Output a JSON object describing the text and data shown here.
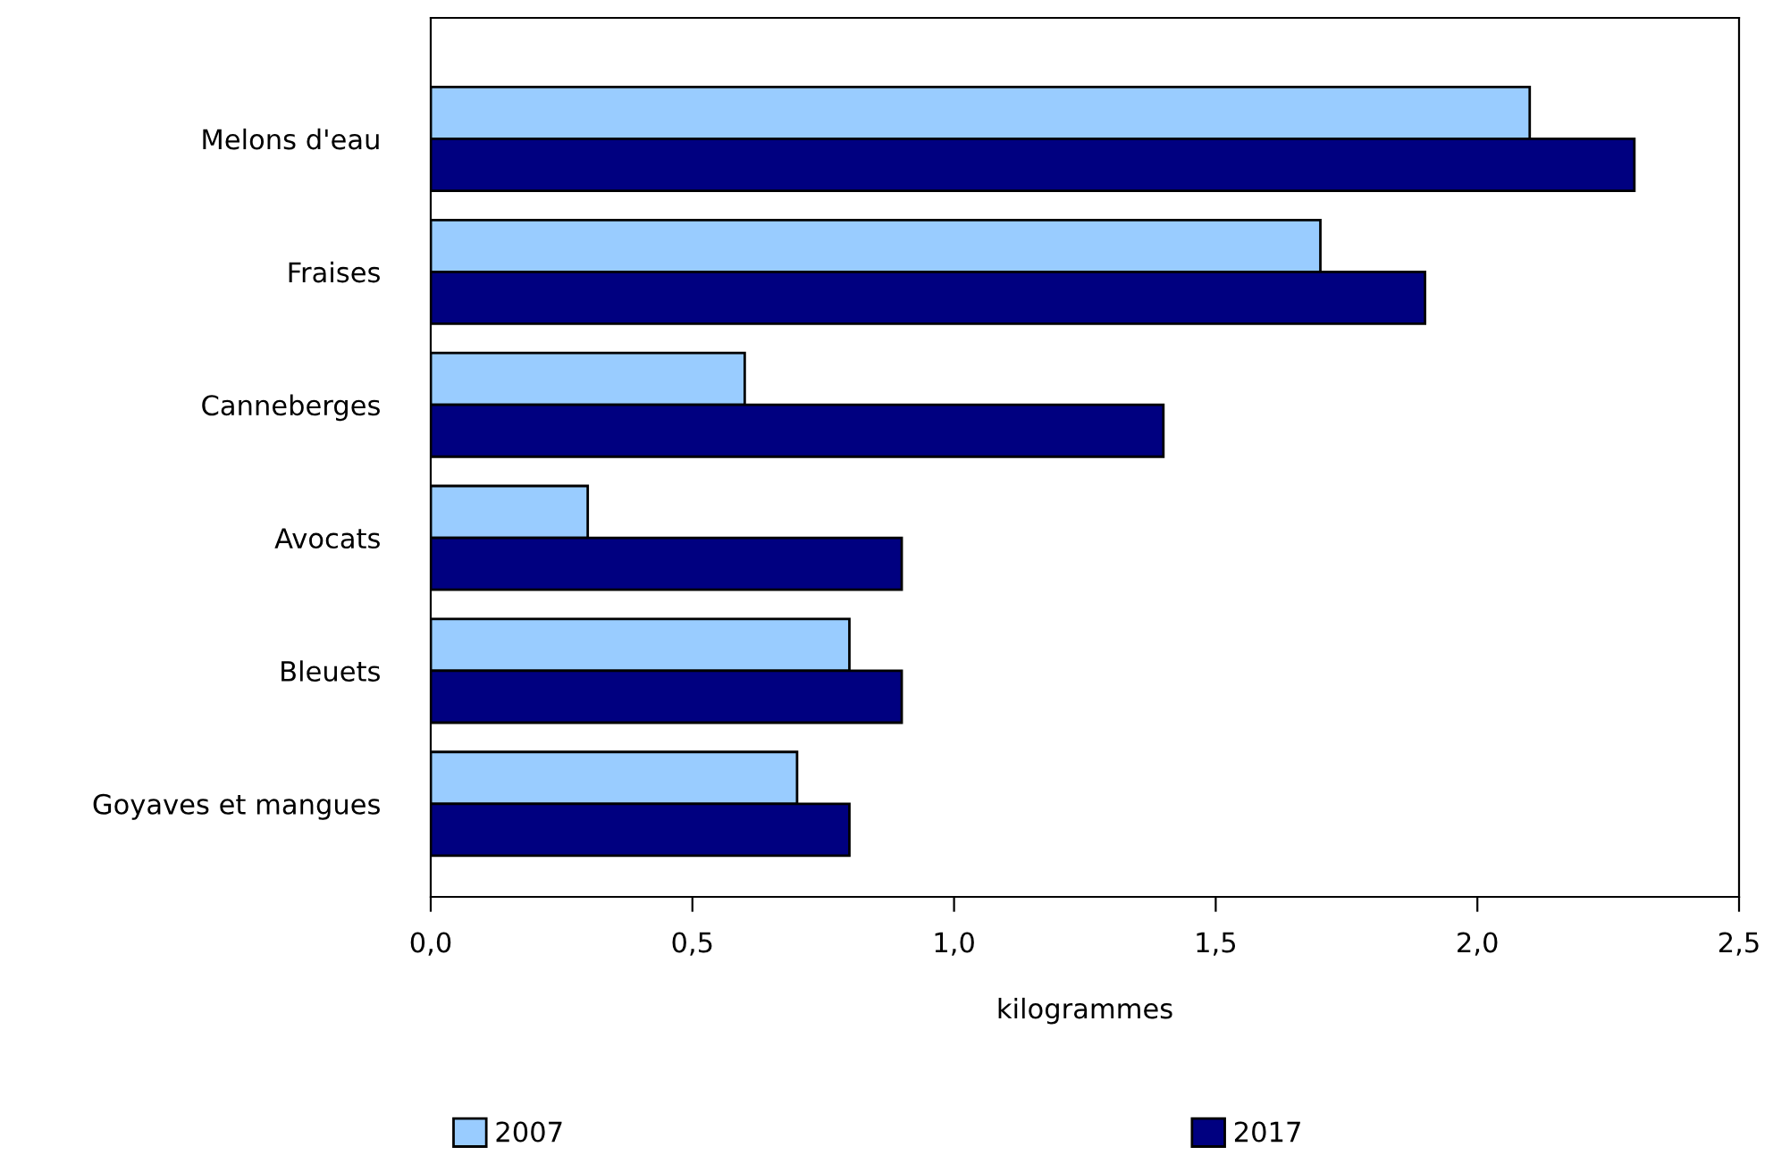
{
  "chart_data": {
    "type": "bar",
    "orientation": "horizontal",
    "xlabel": "kilogrammes",
    "categories": [
      "Melons d'eau",
      "Fraises",
      "Canneberges",
      "Avocats",
      "Bleuets",
      "Goyaves et mangues"
    ],
    "series": [
      {
        "name": "2007",
        "color": "#99ccff",
        "values": [
          2.1,
          1.7,
          0.6,
          0.3,
          0.8,
          0.7
        ]
      },
      {
        "name": "2017",
        "color": "#000080",
        "values": [
          2.3,
          1.9,
          1.4,
          0.9,
          0.9,
          0.8
        ]
      }
    ],
    "xlim": [
      0,
      2.5
    ],
    "xticks": [
      {
        "value": 0,
        "label": "0,0"
      },
      {
        "value": 0.5,
        "label": "0,5"
      },
      {
        "value": 1,
        "label": "1,0"
      },
      {
        "value": 1.5,
        "label": "1,5"
      },
      {
        "value": 2,
        "label": "2,0"
      },
      {
        "value": 2.5,
        "label": "2,5"
      }
    ],
    "grid": false,
    "legend": "bottom"
  }
}
